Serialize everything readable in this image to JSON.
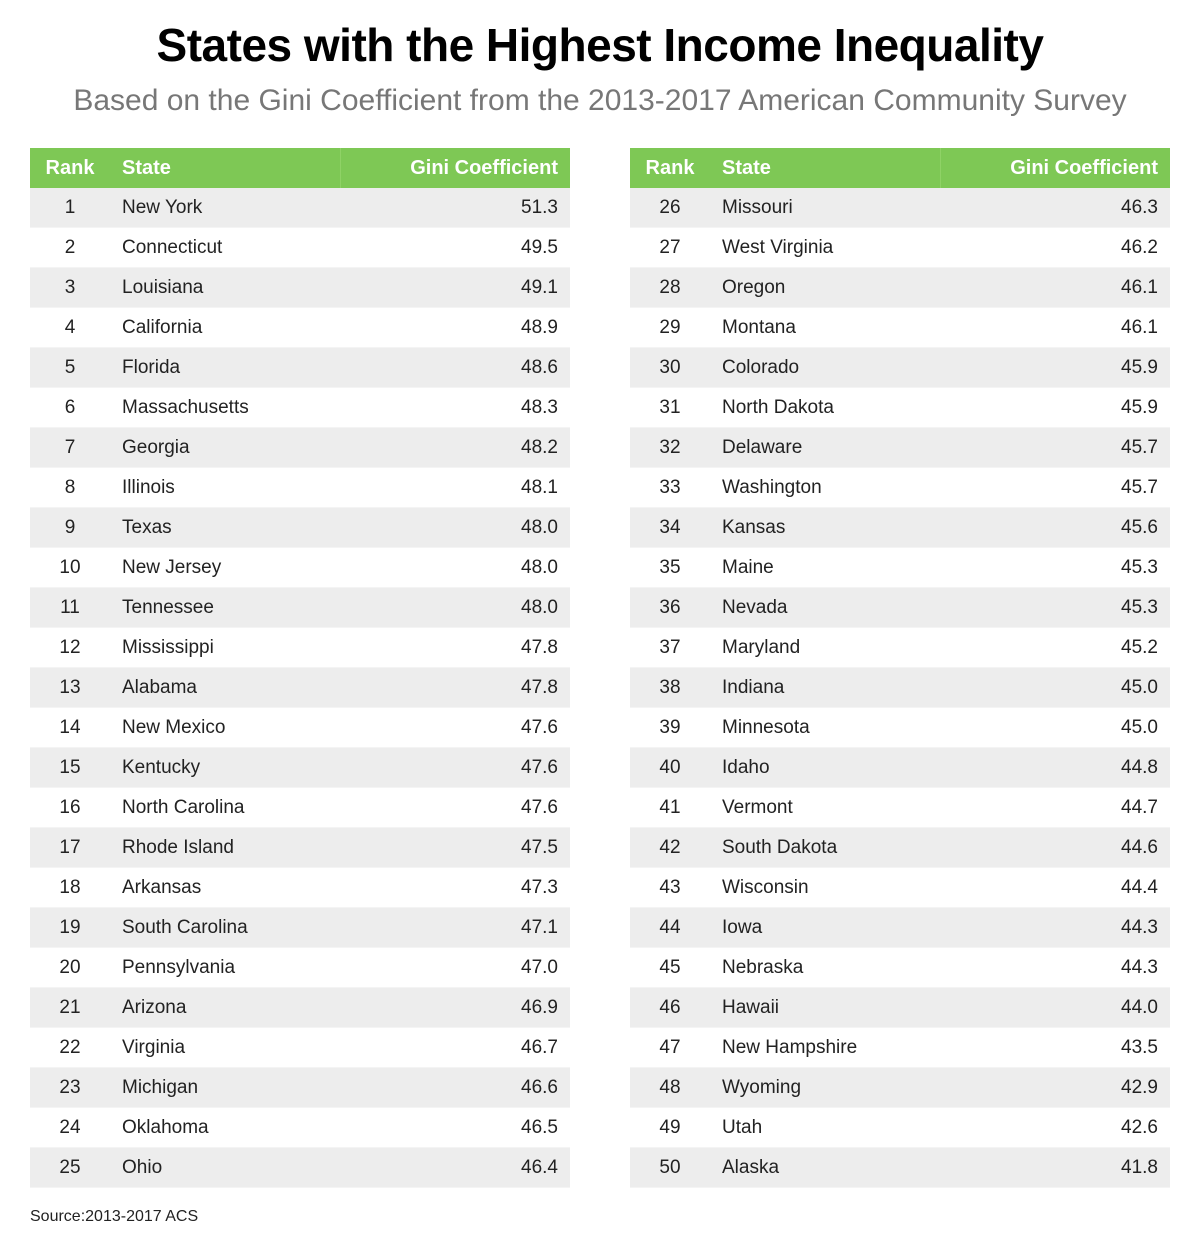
{
  "title": "States with the Highest Income Inequality",
  "subtitle": "Based on the Gini Coefficient from the 2013-2017 American Community Survey",
  "source": "Source:2013-2017 ACS",
  "colors": {
    "header": "#7ec855",
    "stripe": "#ededed"
  },
  "chart_data": {
    "type": "table",
    "columns": [
      "Rank",
      "State",
      "Gini Coefficient"
    ],
    "rows": [
      [
        1,
        "New York",
        "51.3"
      ],
      [
        2,
        "Connecticut",
        "49.5"
      ],
      [
        3,
        "Louisiana",
        "49.1"
      ],
      [
        4,
        "California",
        "48.9"
      ],
      [
        5,
        "Florida",
        "48.6"
      ],
      [
        6,
        "Massachusetts",
        "48.3"
      ],
      [
        7,
        "Georgia",
        "48.2"
      ],
      [
        8,
        "Illinois",
        "48.1"
      ],
      [
        9,
        "Texas",
        "48.0"
      ],
      [
        10,
        "New Jersey",
        "48.0"
      ],
      [
        11,
        "Tennessee",
        "48.0"
      ],
      [
        12,
        "Mississippi",
        "47.8"
      ],
      [
        13,
        "Alabama",
        "47.8"
      ],
      [
        14,
        "New Mexico",
        "47.6"
      ],
      [
        15,
        "Kentucky",
        "47.6"
      ],
      [
        16,
        "North Carolina",
        "47.6"
      ],
      [
        17,
        "Rhode Island",
        "47.5"
      ],
      [
        18,
        "Arkansas",
        "47.3"
      ],
      [
        19,
        "South Carolina",
        "47.1"
      ],
      [
        20,
        "Pennsylvania",
        "47.0"
      ],
      [
        21,
        "Arizona",
        "46.9"
      ],
      [
        22,
        "Virginia",
        "46.7"
      ],
      [
        23,
        "Michigan",
        "46.6"
      ],
      [
        24,
        "Oklahoma",
        "46.5"
      ],
      [
        25,
        "Ohio",
        "46.4"
      ],
      [
        26,
        "Missouri",
        "46.3"
      ],
      [
        27,
        "West Virginia",
        "46.2"
      ],
      [
        28,
        "Oregon",
        "46.1"
      ],
      [
        29,
        "Montana",
        "46.1"
      ],
      [
        30,
        "Colorado",
        "45.9"
      ],
      [
        31,
        "North Dakota",
        "45.9"
      ],
      [
        32,
        "Delaware",
        "45.7"
      ],
      [
        33,
        "Washington",
        "45.7"
      ],
      [
        34,
        "Kansas",
        "45.6"
      ],
      [
        35,
        "Maine",
        "45.3"
      ],
      [
        36,
        "Nevada",
        "45.3"
      ],
      [
        37,
        "Maryland",
        "45.2"
      ],
      [
        38,
        "Indiana",
        "45.0"
      ],
      [
        39,
        "Minnesota",
        "45.0"
      ],
      [
        40,
        "Idaho",
        "44.8"
      ],
      [
        41,
        "Vermont",
        "44.7"
      ],
      [
        42,
        "South Dakota",
        "44.6"
      ],
      [
        43,
        "Wisconsin",
        "44.4"
      ],
      [
        44,
        "Iowa",
        "44.3"
      ],
      [
        45,
        "Nebraska",
        "44.3"
      ],
      [
        46,
        "Hawaii",
        "44.0"
      ],
      [
        47,
        "New Hampshire",
        "43.5"
      ],
      [
        48,
        "Wyoming",
        "42.9"
      ],
      [
        49,
        "Utah",
        "42.6"
      ],
      [
        50,
        "Alaska",
        "41.8"
      ]
    ]
  }
}
